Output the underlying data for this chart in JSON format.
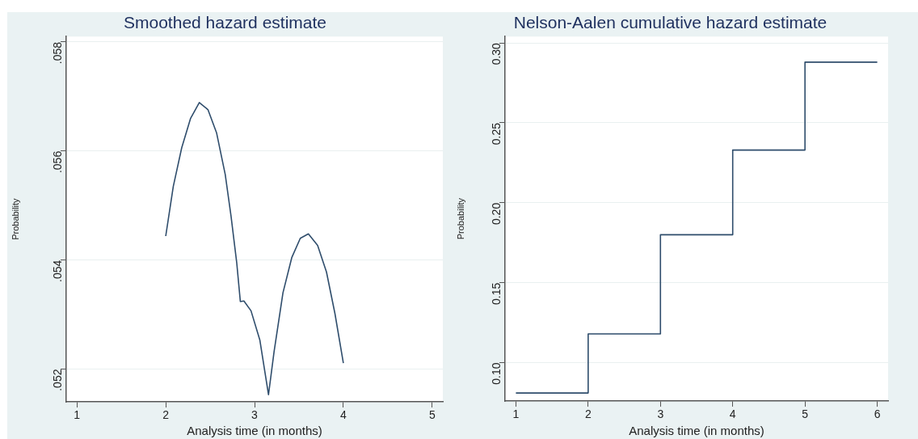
{
  "chart_data": [
    {
      "type": "line",
      "title": "Smoothed hazard estimate",
      "xlabel": "Analysis time (in months)",
      "ylabel": "Probability",
      "color": "#2f4d6c",
      "x": [
        2.0,
        2.085,
        2.18,
        2.28,
        2.378,
        2.475,
        2.573,
        2.67,
        2.735,
        2.8,
        2.84,
        2.88,
        2.96,
        3.06,
        3.157,
        3.22,
        3.32,
        3.42,
        3.515,
        3.606,
        3.71,
        3.81,
        3.905,
        4.0
      ],
      "values": [
        0.05444,
        0.05535,
        0.05606,
        0.0566,
        0.05689,
        0.05676,
        0.05633,
        0.05557,
        0.05481,
        0.05394,
        0.05324,
        0.05325,
        0.05307,
        0.05253,
        0.05153,
        0.05232,
        0.0534,
        0.05405,
        0.0544,
        0.05448,
        0.05427,
        0.05378,
        0.05302,
        0.05211
      ],
      "xlim": [
        0.88,
        5.12
      ],
      "ylim": [
        0.0514,
        0.0581
      ],
      "xticks": [
        1,
        2,
        3,
        4,
        5
      ],
      "yticks": [
        {
          "value": 0.052,
          "label": ".052"
        },
        {
          "value": 0.054,
          "label": ".054"
        },
        {
          "value": 0.056,
          "label": ".056"
        },
        {
          "value": 0.058,
          "label": ".058"
        }
      ],
      "grid": "y",
      "legend": false
    },
    {
      "type": "step",
      "title": "Nelson-Aalen cumulative hazard estimate",
      "xlabel": "Analysis time (in months)",
      "ylabel": "Probability",
      "color": "#2f4d6c",
      "x": [
        1,
        2,
        3,
        4,
        5,
        6
      ],
      "values": [
        0.081,
        0.118,
        0.18,
        0.233,
        0.288,
        0.288
      ],
      "xlim": [
        0.85,
        6.15
      ],
      "ylim": [
        0.076,
        0.304
      ],
      "xticks": [
        1,
        2,
        3,
        4,
        5,
        6
      ],
      "yticks": [
        {
          "value": 0.1,
          "label": "0.10"
        },
        {
          "value": 0.15,
          "label": "0.15"
        },
        {
          "value": 0.2,
          "label": "0.20"
        },
        {
          "value": 0.25,
          "label": "0.25"
        },
        {
          "value": 0.3,
          "label": "0.30"
        }
      ],
      "grid": "y",
      "legend": false
    }
  ]
}
